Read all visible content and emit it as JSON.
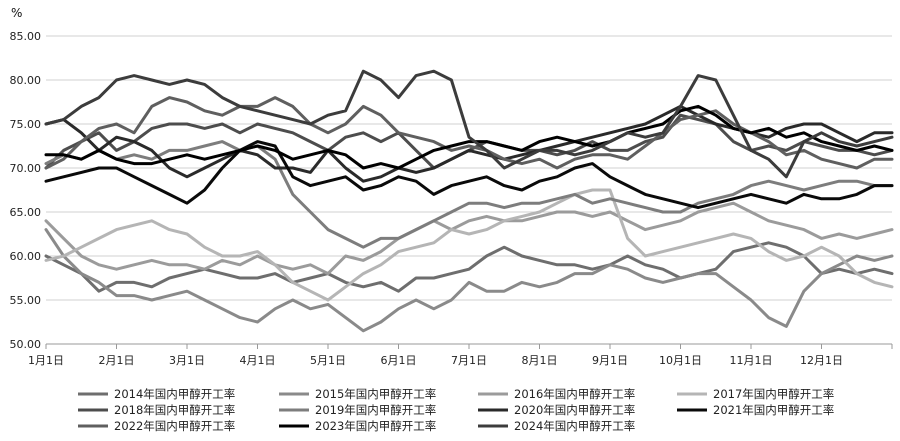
{
  "chart_data": {
    "type": "line",
    "title": "",
    "unit_label": "%",
    "ylim": [
      50,
      85
    ],
    "y_ticks": [
      "50.00",
      "55.00",
      "60.00",
      "65.00",
      "70.00",
      "75.00",
      "80.00",
      "85.00"
    ],
    "y_tick_values": [
      50,
      55,
      60,
      65,
      70,
      75,
      80,
      85
    ],
    "x_domain": [
      1,
      13
    ],
    "x_ticks": [
      "1月1日",
      "2月1日",
      "3月1日",
      "4月1日",
      "5月1日",
      "6月1日",
      "7月1日",
      "8月1日",
      "9月1日",
      "10月1日",
      "11月1日",
      "12月1日"
    ],
    "x_tick_values": [
      1,
      2,
      3,
      4,
      5,
      6,
      7,
      8,
      9,
      10,
      11,
      12
    ],
    "grid": "horizontal",
    "legend_position": "bottom",
    "x": [
      1.0,
      1.25,
      1.5,
      1.75,
      2.0,
      2.25,
      2.5,
      2.75,
      3.0,
      3.25,
      3.5,
      3.75,
      4.0,
      4.25,
      4.5,
      4.75,
      5.0,
      5.25,
      5.5,
      5.75,
      6.0,
      6.25,
      6.5,
      6.75,
      7.0,
      7.25,
      7.5,
      7.75,
      8.0,
      8.25,
      8.5,
      8.75,
      9.0,
      9.25,
      9.5,
      9.75,
      10.0,
      10.25,
      10.5,
      10.75,
      11.0,
      11.25,
      11.5,
      11.75,
      12.0,
      12.25,
      12.5,
      12.75,
      13.0
    ],
    "series": [
      {
        "name": "2014年国内甲醇开工率",
        "color": "#6e6e6e",
        "values": [
          60,
          59,
          58,
          56,
          57,
          57,
          56.5,
          57.5,
          58,
          58.5,
          58,
          57.5,
          57.5,
          58,
          57,
          57.5,
          58,
          57,
          56.5,
          57,
          56,
          57.5,
          57.5,
          58,
          58.5,
          60,
          61,
          60,
          59.5,
          59,
          59,
          58.5,
          59,
          60,
          59,
          58.5,
          57.5,
          58,
          58.5,
          60.5,
          61,
          61.5,
          61,
          60,
          58,
          58.5,
          58,
          58.5,
          58
        ]
      },
      {
        "name": "2015年国内甲醇开工率",
        "color": "#8a8a8a",
        "values": [
          63,
          60,
          58,
          57,
          55.5,
          55.5,
          55,
          55.5,
          56,
          55,
          54,
          53,
          52.5,
          54,
          55,
          54,
          54.5,
          53,
          51.5,
          52.5,
          54,
          55,
          54,
          55,
          57,
          56,
          56,
          57,
          56.5,
          57,
          58,
          58,
          59,
          58.5,
          57.5,
          57,
          57.5,
          58,
          58,
          56.5,
          55,
          53,
          52,
          56,
          58,
          59,
          60,
          59.5,
          60
        ]
      },
      {
        "name": "2016年国内甲醇开工率",
        "color": "#9b9b9b",
        "values": [
          64,
          62,
          60,
          59,
          58.5,
          59,
          59.5,
          59,
          59,
          58.5,
          59.5,
          59,
          60,
          59,
          58.5,
          59,
          58,
          60,
          59.5,
          60.5,
          62,
          63,
          64,
          63,
          64,
          64.5,
          64,
          64,
          64.5,
          65,
          65,
          64.5,
          65,
          64,
          63,
          63.5,
          64,
          65,
          65.5,
          66,
          65,
          64,
          63.5,
          63,
          62,
          62.5,
          62,
          62.5,
          63
        ]
      },
      {
        "name": "2017年国内甲醇开工率",
        "color": "#b5b5b5",
        "values": [
          59.5,
          60,
          61,
          62,
          63,
          63.5,
          64,
          63,
          62.5,
          61,
          60,
          60,
          60.5,
          59,
          57,
          56,
          55,
          56.5,
          58,
          59,
          60.5,
          61,
          61.5,
          63,
          62.5,
          63,
          64,
          64.5,
          65,
          66,
          67,
          67.5,
          67.5,
          62,
          60,
          60.5,
          61,
          61.5,
          62,
          62.5,
          62,
          60.5,
          59.5,
          60,
          61,
          60,
          58,
          57,
          56.5
        ]
      },
      {
        "name": "2018年国内甲醇开工率",
        "color": "#4d4d4d",
        "values": [
          70,
          72,
          73,
          74,
          72,
          73,
          74.5,
          75,
          75,
          74.5,
          75,
          74,
          75,
          74.5,
          74,
          73,
          72,
          73.5,
          74,
          73,
          74,
          72,
          70,
          71,
          72,
          73,
          72.5,
          72,
          72,
          71.5,
          72,
          73,
          72,
          72,
          73,
          73.5,
          76,
          75.5,
          75,
          73,
          72,
          72.5,
          72,
          73,
          72.5,
          72,
          72,
          71.5,
          72
        ]
      },
      {
        "name": "2019年国内甲醇开工率",
        "color": "#7d7d7d",
        "values": [
          70.5,
          71.5,
          71,
          72,
          71,
          71.5,
          71,
          72,
          72,
          72.5,
          73,
          72,
          72.5,
          71,
          67,
          65,
          63,
          62,
          61,
          62,
          62,
          63,
          64,
          65,
          66,
          66,
          65.5,
          66,
          66,
          66.5,
          67,
          66,
          66.5,
          66,
          65.5,
          65,
          65,
          66,
          66.5,
          67,
          68,
          68.5,
          68,
          67.5,
          68,
          68.5,
          68.5,
          68,
          68
        ]
      },
      {
        "name": "2020年国内甲醇开工率",
        "color": "#2a2a2a",
        "values": [
          75,
          75.5,
          74,
          72,
          73.5,
          73,
          72,
          70,
          69,
          70,
          71,
          72,
          71.5,
          70,
          70,
          69.5,
          72,
          70,
          68.5,
          69,
          70,
          69.5,
          70,
          71,
          72,
          71.5,
          71,
          71.5,
          72,
          72.5,
          73,
          73.5,
          74,
          74.5,
          75,
          76,
          77,
          76,
          75,
          74.5,
          74,
          73.5,
          74.5,
          75,
          75,
          74,
          73,
          74,
          74
        ]
      },
      {
        "name": "2021年国内甲醇开工率",
        "color": "#0a0a0a",
        "values": [
          68.5,
          69,
          69.5,
          70,
          70,
          69,
          68,
          67,
          66,
          67.5,
          70,
          72,
          73,
          72.5,
          69,
          68,
          68.5,
          69,
          67.5,
          68,
          69,
          68.5,
          67,
          68,
          68.5,
          69,
          68,
          67.5,
          68.5,
          69,
          70,
          70.5,
          69,
          68,
          67,
          66.5,
          66,
          65.5,
          66,
          66.5,
          67,
          66.5,
          66,
          67,
          66.5,
          66.5,
          67,
          68,
          68
        ]
      },
      {
        "name": "2022年国内甲醇开工率",
        "color": "#5f5f5f",
        "values": [
          70,
          71,
          73,
          74.5,
          75,
          74,
          77,
          78,
          77.5,
          76.5,
          76,
          77,
          77,
          78,
          77,
          75,
          74,
          75,
          77,
          76,
          74,
          73.5,
          73,
          72,
          72.5,
          72,
          71,
          70.5,
          71,
          70,
          71,
          71.5,
          71.5,
          71,
          72.5,
          74,
          75.5,
          76,
          76.5,
          75,
          74,
          73,
          71.5,
          72,
          71,
          70.5,
          70,
          71,
          71
        ]
      },
      {
        "name": "2023年国内甲醇开工率",
        "color": "#000000",
        "values": [
          71.5,
          71.5,
          71,
          72,
          71,
          70.5,
          70.5,
          71,
          71.5,
          71,
          71.5,
          72,
          72.5,
          72,
          71,
          71.5,
          72,
          71.5,
          70,
          70.5,
          70,
          71,
          72,
          72.5,
          73,
          73,
          72.5,
          72,
          73,
          73.5,
          73,
          72.5,
          73,
          74,
          74.5,
          75,
          76.5,
          77,
          76,
          74.5,
          74,
          74.5,
          73.5,
          74,
          73,
          72.5,
          72,
          72.5,
          72
        ]
      },
      {
        "name": "2024年国内甲醇开工率",
        "color": "#3c3c3c",
        "values": [
          75,
          75.5,
          77,
          78,
          80,
          80.5,
          80,
          79.5,
          80,
          79.5,
          78,
          77,
          76.5,
          76,
          75.5,
          75,
          76,
          76.5,
          81,
          80,
          78,
          80.5,
          81,
          80,
          73.5,
          72,
          70,
          71,
          72,
          72,
          71.5,
          72,
          73,
          74,
          73.5,
          74,
          77,
          80.5,
          80,
          76,
          72,
          71,
          69,
          73,
          74,
          73,
          72.5,
          73,
          73.5
        ]
      }
    ]
  }
}
